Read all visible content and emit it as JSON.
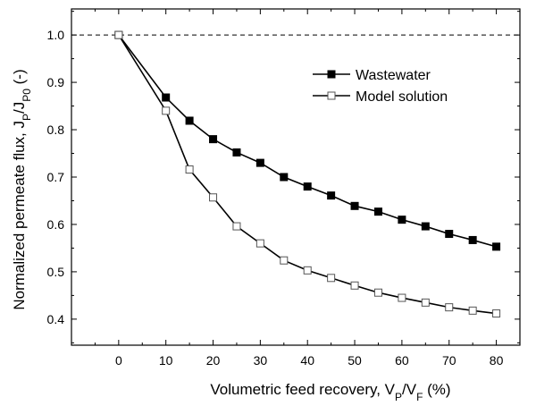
{
  "chart_data": {
    "type": "line",
    "x": [
      0,
      10,
      15,
      20,
      25,
      30,
      35,
      40,
      45,
      50,
      55,
      60,
      65,
      70,
      75,
      80
    ],
    "series": [
      {
        "name": "Wastewater",
        "marker": "filled-square",
        "color": "#000000",
        "values": [
          1.0,
          0.868,
          0.819,
          0.78,
          0.752,
          0.73,
          0.7,
          0.68,
          0.661,
          0.639,
          0.627,
          0.61,
          0.596,
          0.58,
          0.567,
          0.553
        ]
      },
      {
        "name": "Model solution",
        "marker": "open-square",
        "color": "#000000",
        "values": [
          1.0,
          0.84,
          0.716,
          0.657,
          0.596,
          0.56,
          0.524,
          0.503,
          0.487,
          0.471,
          0.456,
          0.445,
          0.435,
          0.425,
          0.418,
          0.412
        ]
      }
    ],
    "reference_line": {
      "y": 1.0,
      "style": "dashed"
    },
    "xlim": [
      -10,
      85
    ],
    "ylim": [
      0.345,
      1.055
    ],
    "xticks": [
      0,
      10,
      20,
      30,
      40,
      50,
      60,
      70,
      80
    ],
    "yticks": [
      0.4,
      0.5,
      0.6,
      0.7,
      0.8,
      0.9,
      1.0
    ],
    "ytick_labels": [
      "0.4",
      "0.5",
      "0.6",
      "0.7",
      "0.8",
      "0.9",
      "1.0"
    ],
    "xlabel": {
      "main": "Volumetric feed recovery, V",
      "sub1": "P",
      "mid": "/V",
      "sub2": "F",
      "end": " (%)"
    },
    "ylabel": {
      "main": "Normalized permeate flux, J",
      "sub1": "P",
      "mid": "/J",
      "sub2": "P0",
      "end": " (-)"
    },
    "legend_position": "top-right",
    "grid": false
  }
}
